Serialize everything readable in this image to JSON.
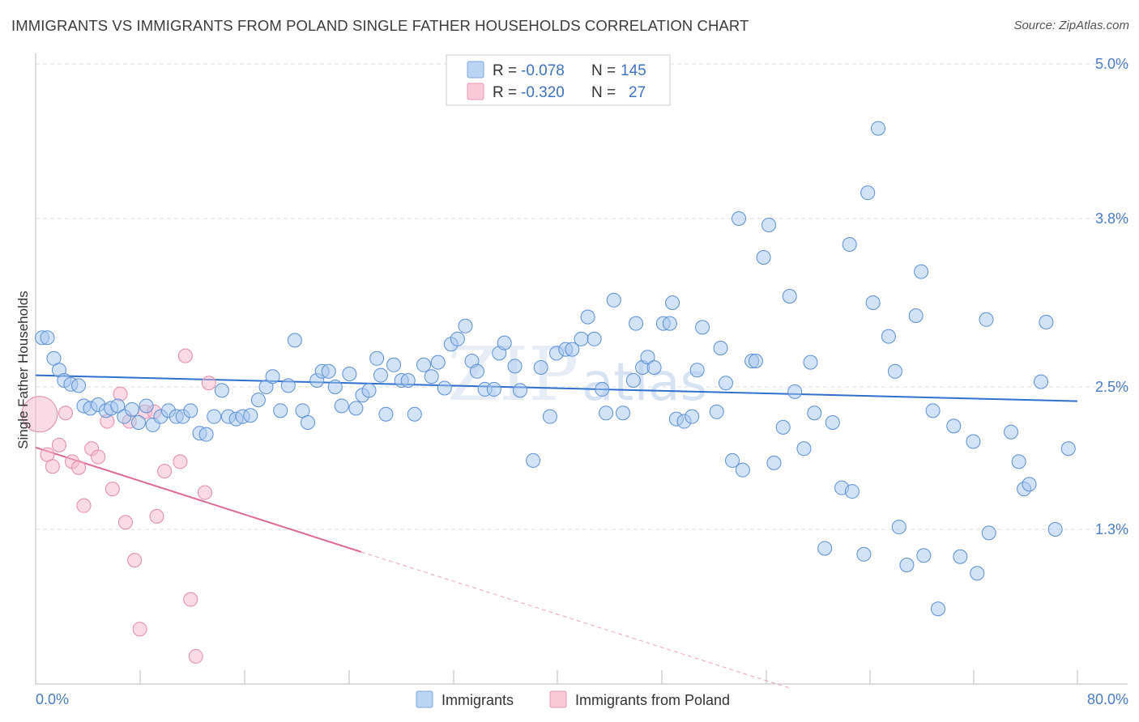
{
  "title": "IMMIGRANTS VS IMMIGRANTS FROM POLAND SINGLE FATHER HOUSEHOLDS CORRELATION CHART",
  "source": "Source: ZipAtlas.com",
  "watermark": "ZIPatlas",
  "legend": {
    "rows": [
      {
        "r_label": "R =",
        "r_value": "-0.078",
        "n_label": "N =",
        "n_value": "145",
        "color": "#a8c8f0"
      },
      {
        "r_label": "R =",
        "r_value": "-0.320",
        "n_label": "N =",
        "n_value": "27",
        "color": "#f5b8cb"
      }
    ]
  },
  "bottom_legend": [
    {
      "label": "Immigrants",
      "color": "#a8c8f0"
    },
    {
      "label": "Immigrants from Poland",
      "color": "#f5b8cb"
    }
  ],
  "chart_data": {
    "type": "scatter",
    "title": "IMMIGRANTS VS IMMIGRANTS FROM POLAND SINGLE FATHER HOUSEHOLDS CORRELATION CHART",
    "xlabel": "",
    "ylabel": "Single Father Households",
    "xlim": [
      0,
      80
    ],
    "ylim": [
      0,
      5.25
    ],
    "x_tick_labels": [
      "0.0%",
      "80.0%"
    ],
    "y_ticks": [
      1.3,
      2.5,
      3.8,
      5.0
    ],
    "y_tick_labels": [
      "1.3%",
      "2.5%",
      "3.8%",
      "5.0%"
    ],
    "grid": true,
    "legend_position": "top-center",
    "series": [
      {
        "name": "Immigrants",
        "color": "#a8c8f0",
        "stroke": "#5b8fd6",
        "trend": {
          "x": [
            0,
            80
          ],
          "y": [
            2.59,
            2.38
          ]
        },
        "points": [
          [
            0.5,
            2.88
          ],
          [
            0.9,
            2.88
          ],
          [
            1.4,
            2.72
          ],
          [
            1.8,
            2.63
          ],
          [
            2.2,
            2.55
          ],
          [
            2.7,
            2.52
          ],
          [
            3.3,
            2.51
          ],
          [
            3.7,
            2.34
          ],
          [
            4.2,
            2.32
          ],
          [
            4.8,
            2.35
          ],
          [
            5.4,
            2.3
          ],
          [
            5.8,
            2.32
          ],
          [
            6.3,
            2.34
          ],
          [
            6.8,
            2.25
          ],
          [
            7.4,
            2.31
          ],
          [
            7.9,
            2.2
          ],
          [
            8.5,
            2.34
          ],
          [
            9.0,
            2.18
          ],
          [
            9.6,
            2.25
          ],
          [
            10.2,
            2.3
          ],
          [
            10.8,
            2.25
          ],
          [
            11.3,
            2.25
          ],
          [
            11.9,
            2.3
          ],
          [
            12.6,
            2.11
          ],
          [
            13.1,
            2.1
          ],
          [
            13.7,
            2.25
          ],
          [
            14.3,
            2.47
          ],
          [
            14.8,
            2.25
          ],
          [
            15.4,
            2.23
          ],
          [
            15.9,
            2.25
          ],
          [
            16.5,
            2.26
          ],
          [
            17.1,
            2.39
          ],
          [
            17.7,
            2.5
          ],
          [
            18.2,
            2.58
          ],
          [
            18.8,
            2.3
          ],
          [
            19.4,
            2.51
          ],
          [
            19.9,
            2.86
          ],
          [
            20.5,
            2.3
          ],
          [
            20.9,
            2.2
          ],
          [
            21.6,
            2.55
          ],
          [
            22.0,
            2.62
          ],
          [
            22.5,
            2.62
          ],
          [
            23.0,
            2.5
          ],
          [
            23.5,
            2.34
          ],
          [
            24.1,
            2.6
          ],
          [
            24.6,
            2.32
          ],
          [
            25.1,
            2.43
          ],
          [
            25.6,
            2.47
          ],
          [
            26.2,
            2.72
          ],
          [
            26.5,
            2.59
          ],
          [
            26.9,
            2.27
          ],
          [
            27.5,
            2.67
          ],
          [
            28.1,
            2.55
          ],
          [
            28.6,
            2.55
          ],
          [
            29.1,
            2.27
          ],
          [
            29.8,
            2.67
          ],
          [
            30.4,
            2.58
          ],
          [
            30.9,
            2.69
          ],
          [
            31.4,
            2.49
          ],
          [
            31.9,
            2.83
          ],
          [
            32.4,
            2.87
          ],
          [
            33.0,
            2.97
          ],
          [
            33.5,
            2.7
          ],
          [
            33.9,
            2.62
          ],
          [
            34.5,
            2.48
          ],
          [
            35.2,
            2.48
          ],
          [
            35.6,
            2.76
          ],
          [
            36.0,
            2.84
          ],
          [
            36.8,
            2.66
          ],
          [
            37.2,
            2.47
          ],
          [
            38.2,
            1.88
          ],
          [
            38.8,
            2.65
          ],
          [
            39.5,
            2.25
          ],
          [
            40.0,
            2.76
          ],
          [
            40.7,
            2.79
          ],
          [
            41.2,
            2.79
          ],
          [
            41.9,
            2.87
          ],
          [
            42.4,
            3.04
          ],
          [
            42.9,
            2.87
          ],
          [
            43.5,
            2.48
          ],
          [
            43.8,
            2.28
          ],
          [
            44.4,
            3.17
          ],
          [
            45.1,
            2.28
          ],
          [
            45.9,
            2.55
          ],
          [
            46.1,
            2.99
          ],
          [
            46.6,
            2.65
          ],
          [
            47.0,
            2.73
          ],
          [
            47.5,
            2.65
          ],
          [
            48.2,
            2.99
          ],
          [
            48.7,
            2.99
          ],
          [
            48.9,
            3.15
          ],
          [
            49.2,
            2.23
          ],
          [
            49.8,
            2.21
          ],
          [
            50.4,
            2.25
          ],
          [
            50.8,
            2.63
          ],
          [
            51.2,
            2.96
          ],
          [
            52.3,
            2.29
          ],
          [
            52.6,
            2.8
          ],
          [
            53.0,
            2.53
          ],
          [
            53.5,
            1.88
          ],
          [
            54.0,
            3.8
          ],
          [
            54.3,
            1.8
          ],
          [
            55.0,
            2.7
          ],
          [
            55.3,
            2.7
          ],
          [
            55.9,
            3.5
          ],
          [
            56.3,
            3.75
          ],
          [
            56.7,
            1.86
          ],
          [
            57.4,
            2.16
          ],
          [
            57.9,
            3.2
          ],
          [
            58.3,
            2.46
          ],
          [
            59.0,
            1.98
          ],
          [
            59.5,
            2.69
          ],
          [
            59.8,
            2.28
          ],
          [
            60.6,
            1.14
          ],
          [
            61.2,
            2.2
          ],
          [
            61.9,
            1.65
          ],
          [
            62.5,
            3.6
          ],
          [
            62.7,
            1.62
          ],
          [
            63.6,
            1.09
          ],
          [
            63.9,
            4.0
          ],
          [
            64.3,
            3.15
          ],
          [
            64.7,
            4.5
          ],
          [
            65.5,
            2.89
          ],
          [
            66.0,
            2.62
          ],
          [
            66.3,
            1.32
          ],
          [
            66.9,
            1.0
          ],
          [
            67.6,
            3.05
          ],
          [
            68.0,
            3.39
          ],
          [
            68.2,
            1.08
          ],
          [
            68.9,
            2.3
          ],
          [
            69.3,
            0.63
          ],
          [
            70.5,
            2.17
          ],
          [
            71.0,
            1.07
          ],
          [
            72.0,
            2.04
          ],
          [
            72.3,
            0.93
          ],
          [
            73.0,
            3.02
          ],
          [
            73.2,
            1.27
          ],
          [
            74.9,
            2.12
          ],
          [
            75.5,
            1.87
          ],
          [
            75.9,
            1.64
          ],
          [
            76.3,
            1.68
          ],
          [
            77.2,
            2.54
          ],
          [
            77.6,
            3.0
          ],
          [
            78.3,
            1.3
          ],
          [
            79.3,
            1.98
          ]
        ]
      },
      {
        "name": "Immigrants from Poland",
        "color": "#f5b8cb",
        "stroke": "#e58aa8",
        "trend": {
          "x": [
            0,
            25
          ],
          "y": [
            1.99,
            1.11
          ]
        },
        "trend_dashed": {
          "x": [
            25,
            58
          ],
          "y": [
            1.11,
            -0.04
          ]
        },
        "points": [
          [
            0.3,
            2.27
          ],
          [
            0.9,
            1.93
          ],
          [
            1.3,
            1.83
          ],
          [
            1.8,
            2.01
          ],
          [
            2.3,
            2.28
          ],
          [
            2.8,
            1.87
          ],
          [
            3.3,
            1.82
          ],
          [
            3.7,
            1.5
          ],
          [
            4.3,
            1.98
          ],
          [
            4.8,
            1.91
          ],
          [
            5.5,
            2.21
          ],
          [
            5.9,
            1.64
          ],
          [
            6.5,
            2.44
          ],
          [
            6.9,
            1.36
          ],
          [
            7.2,
            2.21
          ],
          [
            7.6,
            1.04
          ],
          [
            8.0,
            0.46
          ],
          [
            8.4,
            2.29
          ],
          [
            9.1,
            2.29
          ],
          [
            9.3,
            1.41
          ],
          [
            9.9,
            1.79
          ],
          [
            11.1,
            1.87
          ],
          [
            11.5,
            2.74
          ],
          [
            11.9,
            0.71
          ],
          [
            12.3,
            0.23
          ],
          [
            13.0,
            1.61
          ],
          [
            13.3,
            2.53
          ]
        ]
      }
    ]
  }
}
